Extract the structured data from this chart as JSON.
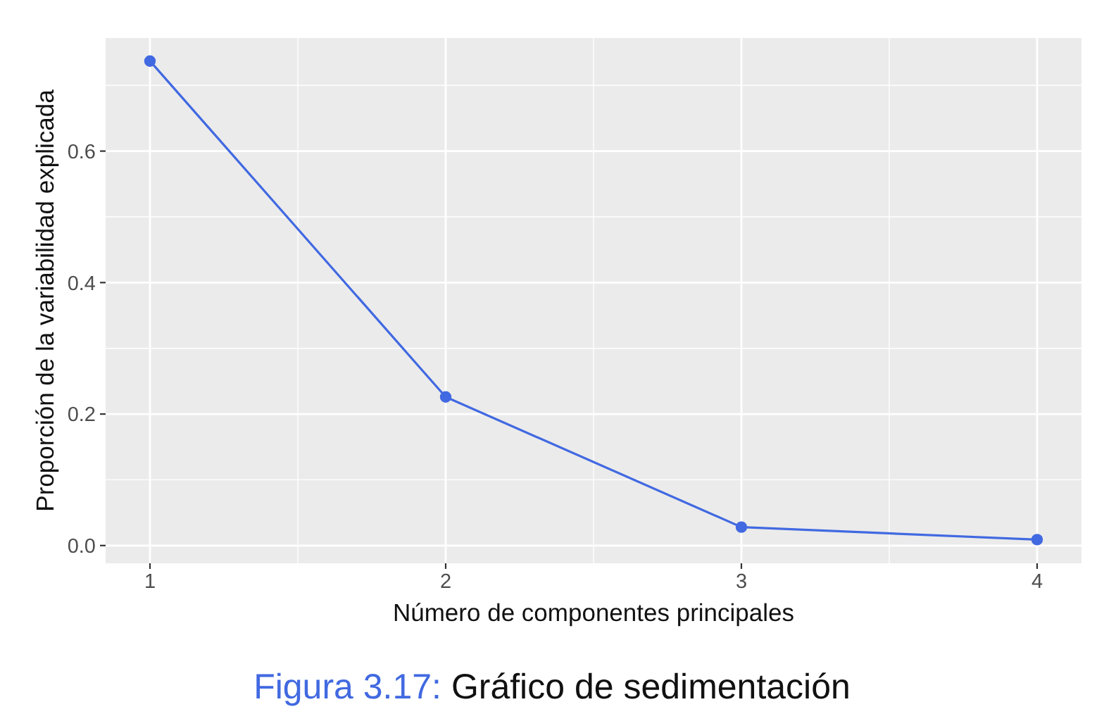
{
  "chart_data": {
    "type": "line",
    "xlabel": "Número de componentes principales",
    "ylabel": "Proporción de la variabilidad explicada",
    "annotations": [
      "Figura 3.17:",
      "Gráfico de sedimentación"
    ],
    "x": [
      1,
      2,
      3,
      4
    ],
    "series": [
      {
        "color": "#4169e1",
        "values": [
          0.737,
          0.226,
          0.028,
          0.009
        ]
      }
    ],
    "xlim": [
      0.85,
      4.15
    ],
    "xticks": [
      1,
      2,
      3,
      4
    ],
    "ylim": [
      -0.027,
      0.772
    ],
    "yticks": [
      {
        "value": 0,
        "label": "0.0"
      },
      0.2,
      0.4,
      0.6
    ],
    "grid": true,
    "marker": "circle",
    "line_style": "solid"
  }
}
